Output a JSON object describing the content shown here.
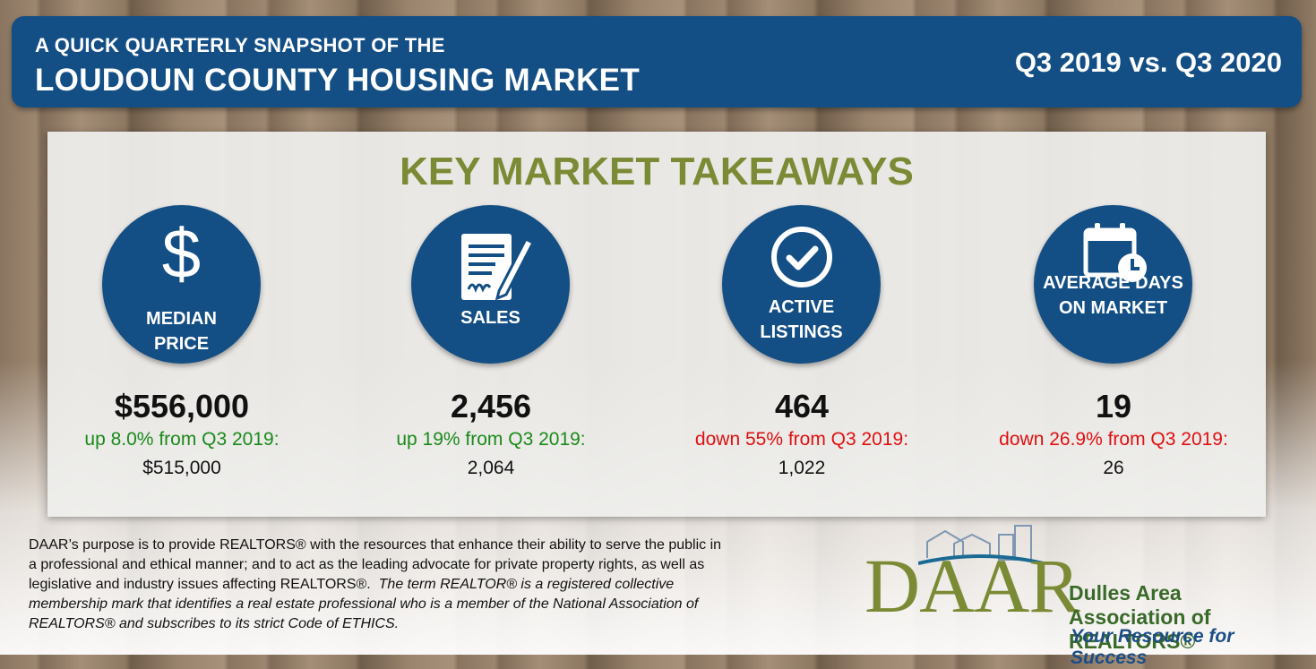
{
  "banner": {
    "subtitle": "A QUICK QUARTERLY SNAPSHOT OF THE",
    "title": "LOUDOUN COUNTY HOUSING MARKET",
    "period": "Q3 2019 vs. Q3 2020"
  },
  "panel": {
    "heading": "KEY MARKET TAKEAWAYS"
  },
  "colors": {
    "navy": "#134f85",
    "olive": "#7b8a34",
    "up": "#1a8a1a",
    "down": "#e01010"
  },
  "stats": [
    {
      "icon": "dollar-icon",
      "label_line1": "MEDIAN",
      "label_line2": "PRICE",
      "value": "$556,000",
      "change": "up 8.0% from Q3 2019:",
      "change_direction": "up",
      "previous": "$515,000"
    },
    {
      "icon": "contract-signature-icon",
      "label_line1": "SALES",
      "label_line2": "",
      "value": "2,456",
      "change": "up 19% from Q3 2019:",
      "change_direction": "up",
      "previous": "2,064"
    },
    {
      "icon": "checkmark-icon",
      "label_line1": "ACTIVE",
      "label_line2": "LISTINGS",
      "value": "464",
      "change": "down 55% from Q3 2019:",
      "change_direction": "down",
      "previous": "1,022"
    },
    {
      "icon": "calendar-clock-icon",
      "label_line1": "AVERAGE DAYS",
      "label_line2": "ON MARKET",
      "value": "19",
      "change": "down 26.9% from Q3 2019:",
      "change_direction": "down",
      "previous": "26"
    }
  ],
  "footer": {
    "line1": "DAAR’s purpose is to provide REALTORS® with the resources that enhance their ability to serve the public in",
    "line2": "a professional and ethical manner; and to act as the leading advocate for private property rights, as well as",
    "line3_normal": "legislative and industry issues affecting REALTORS®.",
    "line3_italic": "The term REALTOR® is a registered collective",
    "line4": "membership mark that identifies a real estate professional who is a member of the National Association of",
    "line5": "REALTORS® and subscribes to its strict Code of ETHICS."
  },
  "logo": {
    "mark": "DAAR",
    "org_line1": "Dulles Area",
    "org_line2": "Association of REALTORS®",
    "tagline": "Your Resource for Success"
  }
}
